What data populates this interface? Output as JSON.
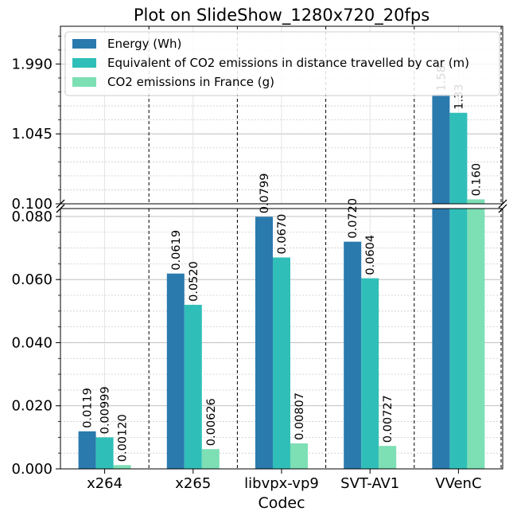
{
  "chart_data": {
    "type": "bar",
    "title": "Plot on SlideShow_1280x720_20fps",
    "xlabel": "Codec",
    "ylabel": "",
    "categories": [
      "x264",
      "x265",
      "libvpx-vp9",
      "SVT-AV1",
      "VVenC"
    ],
    "series": [
      {
        "name": "Energy (Wh)",
        "color": "#2a7aae",
        "values": [
          0.0119,
          0.0619,
          0.0799,
          0.072,
          1.58
        ],
        "labels": [
          "0.0119",
          "0.0619",
          "0.0799",
          "0.0720",
          "1.58"
        ]
      },
      {
        "name": "Equivalent of CO2 emissions in distance travelled by car (m)",
        "color": "#2fbfb8",
        "values": [
          0.00999,
          0.052,
          0.067,
          0.0604,
          1.33
        ],
        "labels": [
          "0.00999",
          "0.0520",
          "0.0670",
          "0.0604",
          "1.33"
        ]
      },
      {
        "name": "CO2 emissions in France (g)",
        "color": "#7ddfb4",
        "values": [
          0.0012,
          0.00626,
          0.00807,
          0.00727,
          0.16
        ],
        "labels": [
          "0.00120",
          "0.00626",
          "0.00807",
          "0.00727",
          "0.160"
        ]
      }
    ],
    "broken_axis": true,
    "lower_axis": {
      "ylim": [
        0,
        0.0825
      ],
      "ticks": [
        "0.000",
        "0.020",
        "0.040",
        "0.060",
        "0.080"
      ],
      "tick_values": [
        0,
        0.02,
        0.04,
        0.06,
        0.08
      ]
    },
    "upper_axis": {
      "ylim": [
        0.1,
        2.5
      ],
      "ticks": [
        "0.100",
        "1.045",
        "1.990"
      ],
      "tick_values": [
        0.1,
        1.045,
        1.99
      ]
    },
    "grid": true,
    "legend_position": "top-right"
  }
}
